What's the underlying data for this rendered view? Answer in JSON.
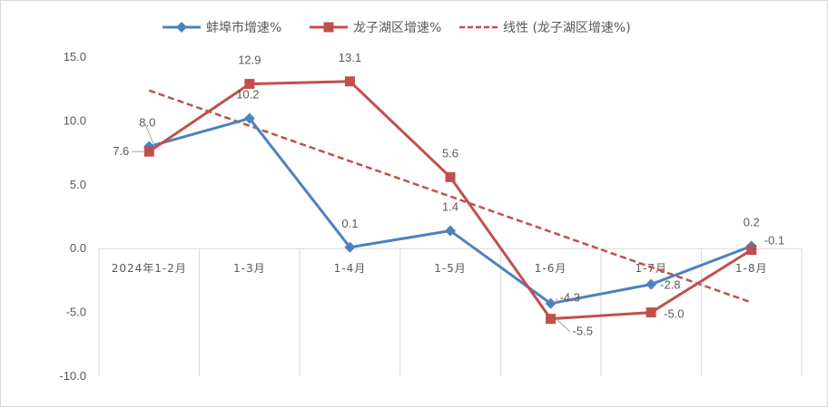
{
  "chart_data": {
    "type": "line",
    "categories": [
      "2024年1-2月",
      "1-3月",
      "1-4月",
      "1-5月",
      "1-6月",
      "1-7月",
      "1-8月"
    ],
    "ylim": [
      -10,
      15
    ],
    "yticks": [
      "15.0",
      "10.0",
      "5.0",
      "0.0",
      "-5.0",
      "-10.0"
    ],
    "ytick_values": [
      15,
      10,
      5,
      0,
      -5,
      -10
    ],
    "grid": false,
    "legend_position": "top",
    "series": [
      {
        "name": "蚌埠市增速%",
        "values": [
          8.0,
          10.2,
          0.1,
          1.4,
          -4.3,
          -2.8,
          0.2
        ],
        "labels": [
          "8.0",
          "10.2",
          "0.1",
          "1.4",
          "-4.3",
          "-2.8",
          "0.2"
        ],
        "color": "#4f81bd",
        "marker": "diamond"
      },
      {
        "name": "龙子湖区增速%",
        "values": [
          7.6,
          12.9,
          13.1,
          5.6,
          -5.5,
          -5.0,
          -0.1
        ],
        "labels": [
          "7.6",
          "12.9",
          "13.1",
          "5.6",
          "-5.5",
          "-5.0",
          "-0.1"
        ],
        "color": "#c0504d",
        "marker": "square"
      }
    ],
    "trendline": {
      "name": "线性 (龙子湖区增速%)",
      "of_series": "龙子湖区增速%",
      "type": "linear",
      "color": "#c0504d",
      "style": "dashed"
    }
  }
}
